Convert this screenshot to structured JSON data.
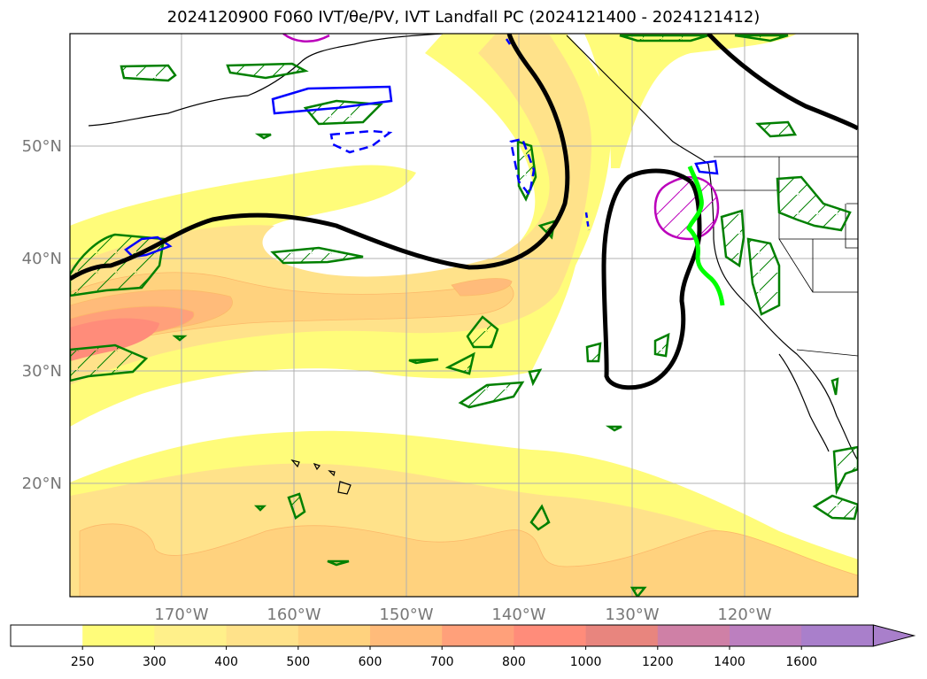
{
  "title": "2024120900 F060 IVT/θe/PV, IVT Landfall PC (2024121400 - 2024121412)",
  "axes": {
    "lat_labels": [
      "50°N",
      "40°N",
      "30°N",
      "20°N"
    ],
    "lon_labels": [
      "170°W",
      "160°W",
      "150°W",
      "140°W",
      "130°W",
      "120°W"
    ]
  },
  "legend": {
    "colorbar_ticks": [
      "250",
      "300",
      "400",
      "500",
      "600",
      "700",
      "800",
      "1000",
      "1200",
      "1400",
      "1600"
    ],
    "colors": [
      "#ffffff",
      "#fffc7a",
      "#fff08a",
      "#ffe28a",
      "#ffd27e",
      "#ffbb7a",
      "#ffa07a",
      "#ff8c7a",
      "#e8857e",
      "#cf80a6",
      "#bc7fbf",
      "#a97fcb"
    ]
  },
  "colors": {
    "ivt_contours": "#fcb96a",
    "theta_e_line": "#000000",
    "pv_positive": "#008000",
    "pv_negative": "#0000ff",
    "landfall": "#00ff00",
    "magenta_contour": "#bb00bb",
    "grid": "#b0b0b0"
  }
}
